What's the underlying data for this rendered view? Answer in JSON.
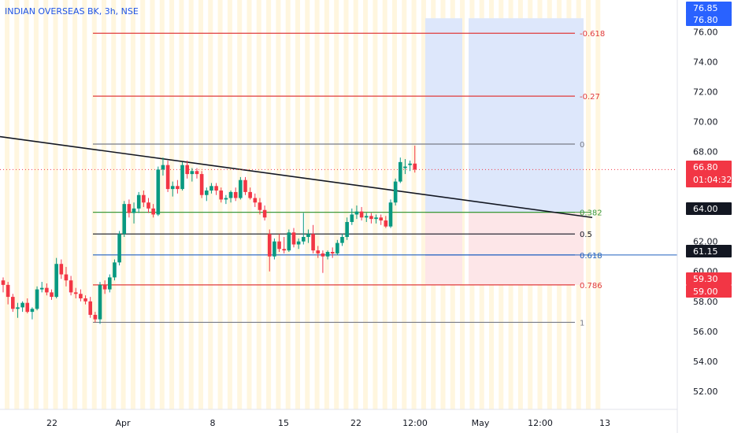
{
  "header": {
    "title": "INDIAN OVERSEAS BK, 3h, NSE"
  },
  "chart_data": {
    "type": "candlestick",
    "ylim": [
      50.0,
      77.7
    ],
    "y_ticks": [
      "76.00",
      "74.00",
      "72.00",
      "70.00",
      "68.00",
      "66.00",
      "64.00",
      "62.00",
      "60.00",
      "58.00",
      "56.00",
      "54.00",
      "52.00"
    ],
    "x_ticks": [
      "22",
      "Apr",
      "8",
      "15",
      "22",
      "12:00",
      "May",
      "12:00",
      "13"
    ],
    "price_badges": [
      {
        "value": "76.85",
        "color": "#2962ff",
        "text_color": "#ffffff"
      },
      {
        "value": "76.80",
        "color": "#2962ff",
        "text_color": "#ffffff"
      },
      {
        "value": "66.80",
        "color": "#f23645",
        "text_color": "#ffffff",
        "sub": "01:04:32"
      },
      {
        "value": "64.00",
        "color": "#131722",
        "text_color": "#ffffff"
      },
      {
        "value": "61.15",
        "color": "#131722",
        "text_color": "#ffffff"
      },
      {
        "value": "59.30",
        "color": "#f23645",
        "text_color": "#ffffff"
      },
      {
        "value": "59.00",
        "color": "#f23645",
        "text_color": "#ffffff"
      }
    ],
    "fib_levels": [
      {
        "label": "-0.618",
        "price": 75.9,
        "color": "#e03b3b"
      },
      {
        "label": "-0.27",
        "price": 71.7,
        "color": "#e03b3b"
      },
      {
        "label": "0",
        "price": 68.5,
        "color": "#787b86"
      },
      {
        "label": "0.382",
        "price": 63.95,
        "color": "#3d9a3d"
      },
      {
        "label": "0.5",
        "price": 62.5,
        "color": "#131722"
      },
      {
        "label": "0.618",
        "price": 61.1,
        "color": "#1f5fbf"
      },
      {
        "label": "0.786",
        "price": 59.1,
        "color": "#e03b3b"
      },
      {
        "label": "1",
        "price": 56.6,
        "color": "#787b86"
      }
    ],
    "trendline": {
      "start_price": 69.0,
      "end_price": 63.6
    },
    "current_price": 66.8,
    "candles": [
      [
        59.4,
        59.6,
        58.6,
        59.1
      ],
      [
        59.1,
        59.3,
        57.8,
        58.3
      ],
      [
        58.3,
        58.5,
        57.3,
        57.5
      ],
      [
        57.5,
        57.9,
        56.9,
        57.6
      ],
      [
        57.6,
        58.0,
        57.3,
        57.9
      ],
      [
        57.9,
        58.2,
        57.2,
        57.3
      ],
      [
        57.3,
        57.6,
        56.8,
        57.5
      ],
      [
        57.5,
        59.0,
        57.4,
        58.8
      ],
      [
        58.8,
        59.3,
        58.6,
        58.9
      ],
      [
        58.9,
        59.2,
        58.4,
        58.6
      ],
      [
        58.6,
        58.8,
        58.1,
        58.3
      ],
      [
        58.3,
        60.9,
        58.2,
        60.5
      ],
      [
        60.5,
        60.8,
        59.5,
        59.8
      ],
      [
        59.8,
        60.3,
        59.0,
        59.4
      ],
      [
        59.4,
        59.7,
        58.4,
        58.6
      ],
      [
        58.6,
        58.9,
        58.2,
        58.5
      ],
      [
        58.5,
        58.8,
        58.0,
        58.2
      ],
      [
        58.2,
        58.4,
        57.8,
        58.0
      ],
      [
        58.0,
        58.3,
        56.9,
        57.1
      ],
      [
        57.1,
        57.3,
        56.6,
        56.8
      ],
      [
        56.8,
        59.3,
        56.5,
        59.1
      ],
      [
        59.1,
        59.4,
        58.5,
        58.8
      ],
      [
        58.8,
        59.8,
        58.6,
        59.6
      ],
      [
        59.6,
        60.8,
        59.4,
        60.6
      ],
      [
        60.6,
        62.7,
        60.4,
        62.5
      ],
      [
        62.5,
        64.7,
        62.3,
        64.5
      ],
      [
        64.5,
        64.8,
        63.6,
        63.9
      ],
      [
        63.9,
        64.6,
        63.2,
        64.2
      ],
      [
        64.2,
        65.3,
        63.9,
        65.1
      ],
      [
        65.1,
        65.4,
        64.3,
        64.6
      ],
      [
        64.6,
        64.9,
        63.9,
        64.2
      ],
      [
        64.2,
        64.5,
        63.6,
        63.8
      ],
      [
        63.8,
        67.0,
        63.7,
        66.8
      ],
      [
        66.8,
        67.6,
        66.4,
        67.1
      ],
      [
        67.1,
        67.4,
        65.3,
        65.5
      ],
      [
        65.5,
        66.0,
        65.0,
        65.7
      ],
      [
        65.7,
        66.1,
        65.2,
        65.5
      ],
      [
        65.5,
        67.3,
        65.4,
        67.1
      ],
      [
        67.1,
        67.4,
        66.2,
        66.5
      ],
      [
        66.5,
        66.9,
        66.0,
        66.7
      ],
      [
        66.7,
        66.9,
        66.2,
        66.5
      ],
      [
        66.5,
        66.7,
        64.9,
        65.1
      ],
      [
        65.1,
        65.6,
        64.7,
        65.4
      ],
      [
        65.4,
        65.9,
        65.2,
        65.7
      ],
      [
        65.7,
        65.9,
        65.1,
        65.4
      ],
      [
        65.4,
        65.6,
        64.6,
        64.8
      ],
      [
        64.8,
        65.1,
        64.5,
        64.9
      ],
      [
        64.9,
        65.4,
        64.6,
        65.3
      ],
      [
        65.3,
        65.6,
        64.7,
        64.9
      ],
      [
        64.9,
        66.3,
        64.8,
        66.1
      ],
      [
        66.1,
        66.3,
        65.1,
        65.3
      ],
      [
        65.3,
        65.6,
        64.8,
        64.9
      ],
      [
        64.9,
        65.2,
        64.3,
        64.6
      ],
      [
        64.6,
        64.9,
        63.8,
        64.1
      ],
      [
        64.1,
        64.4,
        63.4,
        63.6
      ],
      [
        62.5,
        62.8,
        60.0,
        61.0
      ],
      [
        61.0,
        62.2,
        60.8,
        62.0
      ],
      [
        62.0,
        62.5,
        61.3,
        61.5
      ],
      [
        61.5,
        62.3,
        61.2,
        61.4
      ],
      [
        61.4,
        62.8,
        61.3,
        62.6
      ],
      [
        62.6,
        62.9,
        61.6,
        61.8
      ],
      [
        61.8,
        62.2,
        61.5,
        62.0
      ],
      [
        62.0,
        63.9,
        61.8,
        62.3
      ],
      [
        62.3,
        62.8,
        61.9,
        62.5
      ],
      [
        62.5,
        63.1,
        61.2,
        61.4
      ],
      [
        61.4,
        61.7,
        60.9,
        61.2
      ],
      [
        61.2,
        61.4,
        59.9,
        61.0
      ],
      [
        61.0,
        61.4,
        60.8,
        61.3
      ],
      [
        61.3,
        61.6,
        60.9,
        61.2
      ],
      [
        61.2,
        62.1,
        61.1,
        61.9
      ],
      [
        61.9,
        62.5,
        61.7,
        62.3
      ],
      [
        62.3,
        63.6,
        62.1,
        63.3
      ],
      [
        63.3,
        64.2,
        63.1,
        63.8
      ],
      [
        63.8,
        64.4,
        63.5,
        64.0
      ],
      [
        64.0,
        64.3,
        63.4,
        63.6
      ],
      [
        63.6,
        63.9,
        63.3,
        63.7
      ],
      [
        63.7,
        63.9,
        63.2,
        63.5
      ],
      [
        63.5,
        63.8,
        63.2,
        63.6
      ],
      [
        63.6,
        63.8,
        63.1,
        63.4
      ],
      [
        63.4,
        63.7,
        62.9,
        63.0
      ],
      [
        63.0,
        64.8,
        62.9,
        64.6
      ],
      [
        64.6,
        66.2,
        64.4,
        66.0
      ],
      [
        66.0,
        67.6,
        65.9,
        67.3
      ],
      [
        66.9,
        67.5,
        66.5,
        67.0
      ],
      [
        67.1,
        67.4,
        66.7,
        67.2
      ],
      [
        67.2,
        68.4,
        66.6,
        66.8
      ]
    ]
  }
}
